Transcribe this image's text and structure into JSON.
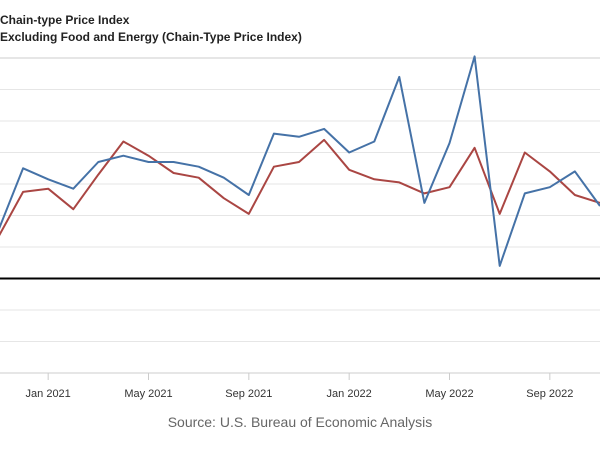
{
  "chart_data": {
    "type": "line",
    "series": [
      {
        "name": "Chain-type Price Index",
        "color": "#4572a7",
        "values": [
          0.3,
          0.7,
          0.63,
          0.57,
          0.74,
          0.78,
          0.74,
          0.74,
          0.71,
          0.64,
          0.53,
          0.92,
          0.9,
          0.95,
          0.8,
          0.87,
          1.28,
          0.48,
          0.86,
          1.41,
          0.08,
          0.54,
          0.58,
          0.68,
          0.46
        ]
      },
      {
        "name": "Excluding Food and Energy (Chain-Type Price Index)",
        "color": "#aa4643",
        "values": [
          0.26,
          0.55,
          0.57,
          0.44,
          0.66,
          0.87,
          0.78,
          0.67,
          0.64,
          0.51,
          0.41,
          0.71,
          0.74,
          0.88,
          0.69,
          0.63,
          0.61,
          0.54,
          0.58,
          0.83,
          0.41,
          0.8,
          0.68,
          0.53,
          0.48
        ]
      }
    ],
    "x": [
      "2020-11",
      "2020-12",
      "2021-01",
      "2021-02",
      "2021-03",
      "2021-04",
      "2021-05",
      "2021-06",
      "2021-07",
      "2021-08",
      "2021-09",
      "2021-10",
      "2021-11",
      "2021-12",
      "2022-01",
      "2022-02",
      "2022-03",
      "2022-04",
      "2022-05",
      "2022-06",
      "2022-07",
      "2022-08",
      "2022-09",
      "2022-10",
      "2022-11"
    ],
    "x_ticks": [
      "Jan 2021",
      "May 2021",
      "Sep 2021",
      "Jan 2022",
      "May 2022",
      "Sep 2022"
    ],
    "ylim": [
      -0.6,
      1.4
    ],
    "zero_line": 0,
    "grid": true,
    "legend_placement": "top-left"
  },
  "source": "Source: U.S. Bureau of Economic Analysis"
}
